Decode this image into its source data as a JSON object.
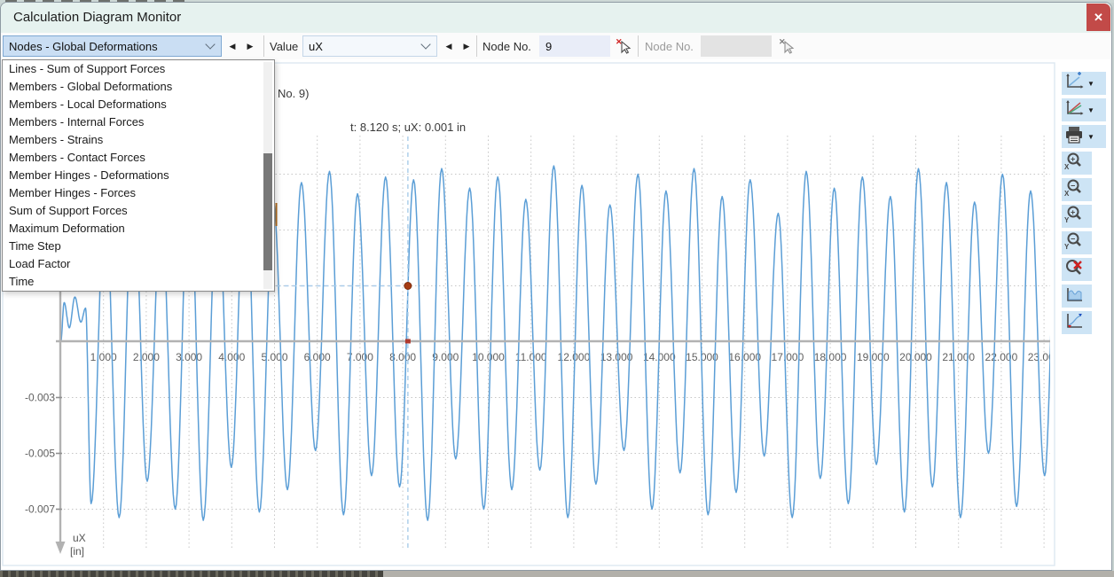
{
  "window": {
    "title": "Calculation Diagram Monitor",
    "close_label": "✕"
  },
  "toolbar": {
    "category_select": {
      "value": "Nodes - Global Deformations"
    },
    "prev_label": "◀",
    "next_label": "▶",
    "value_label": "Value",
    "value_select": {
      "value": "uX"
    },
    "node_no_label": "Node No.",
    "node_no_value": "9",
    "node_no2_label": "Node No.",
    "node_no2_value": ""
  },
  "dropdown": {
    "items": [
      "Lines - Sum of Support Forces",
      "Members - Global Deformations",
      "Members - Local Deformations",
      "Members - Internal Forces",
      "Members - Strains",
      "Members - Contact Forces",
      "Member Hinges - Deformations",
      "Member Hinges - Forces",
      "Sum of Support Forces",
      "Maximum Deformation",
      "Time Step",
      "Load Factor",
      "Time"
    ]
  },
  "right_toolbar": {
    "icons": [
      "add-diagram-icon",
      "diagram-options-icon",
      "print-icon",
      "zoom-in-x-icon",
      "zoom-out-x-icon",
      "zoom-in-y-icon",
      "zoom-out-y-icon",
      "zoom-reset-icon",
      "zoom-full-icon",
      "extreme-values-icon"
    ]
  },
  "chart_data": {
    "type": "line",
    "title_visible_fragment": "No. 9)",
    "cursor_readout": "t: 8.120 s; uX: 0.001 in",
    "marker": {
      "t_s": 8.12,
      "ux_in": 0.001
    },
    "x_axis": {
      "unit": "s",
      "tick_labels": [
        "1.000",
        "2.000",
        "3.000",
        "4.000",
        "5.000",
        "6.000",
        "7.000",
        "8.000",
        "9.000",
        "10.000",
        "11.000",
        "12.000",
        "13.000",
        "14.000",
        "15.000",
        "16.000",
        "17.000",
        "18.000",
        "19.000",
        "20.000",
        "21.000",
        "22.000",
        "23.000"
      ],
      "tick_values": [
        1,
        2,
        3,
        4,
        5,
        6,
        7,
        8,
        9,
        10,
        11,
        12,
        13,
        14,
        15,
        16,
        17,
        18,
        19,
        20,
        21,
        22,
        23
      ],
      "range": [
        0,
        23.2
      ]
    },
    "y_axis": {
      "label": "uX",
      "unit": "[in]",
      "labeled_tick_values": [
        -0.003,
        -0.005,
        -0.007
      ],
      "tick_labels": [
        "-0.003",
        "-0.005",
        "-0.007"
      ],
      "grid_values": [
        0.005,
        0.003,
        0.001,
        -0.003,
        -0.005,
        -0.007
      ],
      "range": [
        0.0062,
        -0.0078
      ]
    },
    "grid": true,
    "series": {
      "name": "uX",
      "color": "#5b9ed6",
      "t_end_s": 23.3,
      "intro_extremes": [
        [
          0.0,
          -0.001
        ],
        [
          0.08,
          0.0004
        ],
        [
          0.2,
          -0.0005
        ],
        [
          0.33,
          0.0006
        ],
        [
          0.47,
          -0.0003
        ],
        [
          0.58,
          0.0002
        ]
      ],
      "first_trough_t_s": 0.71,
      "half_period_s": 0.328,
      "trough_values_in": [
        -0.0068,
        -0.0073,
        -0.006,
        -0.007,
        -0.0074,
        -0.0055,
        -0.0071,
        -0.0063,
        -0.0049,
        -0.0072,
        -0.0058,
        -0.0062,
        -0.0074,
        -0.0052,
        -0.007,
        -0.0063,
        -0.0056,
        -0.0073,
        -0.0061,
        -0.0049,
        -0.007,
        -0.0057,
        -0.0072,
        -0.0064,
        -0.0051,
        -0.0073,
        -0.0059,
        -0.0068,
        -0.0054,
        -0.0071,
        -0.0062,
        -0.0073,
        -0.005,
        -0.0069,
        -0.0058
      ],
      "peak_values_in": [
        0.0042,
        0.005,
        0.0038,
        0.0052,
        0.0044,
        0.0053,
        0.004,
        0.0047,
        0.0051,
        0.0043,
        0.0049,
        0.0048,
        0.0052,
        0.0045,
        0.0049,
        0.0041,
        0.0053,
        0.0046,
        0.0039,
        0.005,
        0.0044,
        0.0052,
        0.0042,
        0.0048,
        0.0036,
        0.0051,
        0.0045,
        0.0049,
        0.0042,
        0.0052,
        0.0047,
        0.004,
        0.005,
        0.0044
      ],
      "final_extreme": [
        23.3,
        0.0042
      ]
    }
  }
}
